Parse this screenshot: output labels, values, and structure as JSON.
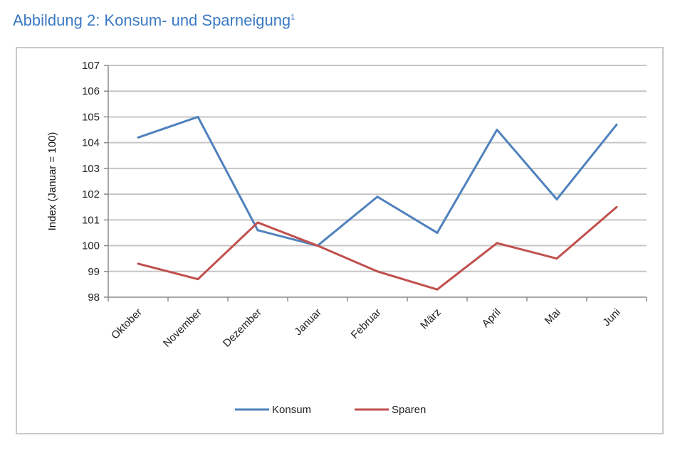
{
  "figure": {
    "title": "Abbildung 2: Konsum- und Sparneigung",
    "footnote_mark": "1"
  },
  "chart_data": {
    "type": "line",
    "title": "",
    "xlabel": "",
    "ylabel": "Index (Januar = 100)",
    "categories": [
      "Oktober",
      "November",
      "Dezember",
      "Januar",
      "Februar",
      "März",
      "April",
      "Mai",
      "Juni"
    ],
    "ylim": [
      98,
      107
    ],
    "yticks": [
      98,
      99,
      100,
      101,
      102,
      103,
      104,
      105,
      106,
      107
    ],
    "grid": true,
    "legend_position": "bottom",
    "series": [
      {
        "name": "Konsum",
        "color": "#4f81bd",
        "values": [
          104.2,
          105.0,
          100.6,
          100.0,
          101.9,
          100.5,
          104.5,
          101.8,
          104.7
        ]
      },
      {
        "name": "Sparen",
        "color": "#c0504d",
        "values": [
          99.3,
          98.7,
          100.9,
          100.0,
          99.0,
          98.3,
          100.1,
          99.5,
          101.5
        ]
      }
    ]
  }
}
